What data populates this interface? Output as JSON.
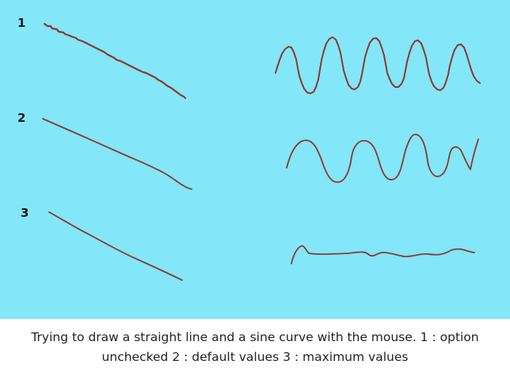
{
  "drawing": {
    "background_color": "#83e6f9",
    "stroke_color": "#8a3a2c",
    "rows": [
      {
        "number": "1"
      },
      {
        "number": "2"
      },
      {
        "number": "3"
      }
    ]
  },
  "caption": {
    "text": "Trying to draw a straight line and a sine curve with the mouse. 1 : option unchecked 2 : default values 3 : maximum values"
  }
}
